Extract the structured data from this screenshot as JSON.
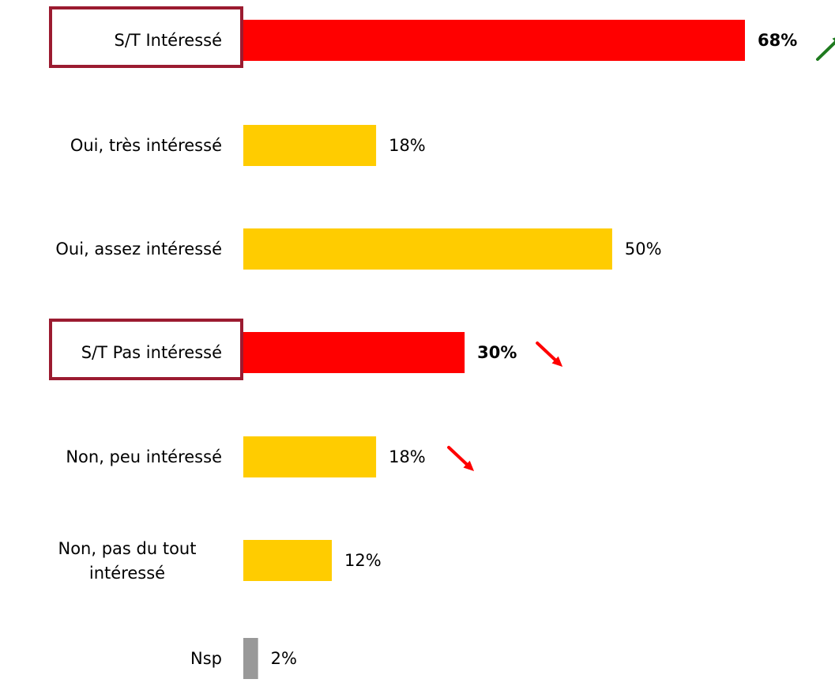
{
  "chart_data": {
    "type": "bar",
    "orientation": "horizontal",
    "categories": [
      "S/T Intéressé",
      "Oui, très intéressé",
      "Oui, assez intéressé",
      "S/T Pas intéressé",
      "Non, peu intéressé",
      "Non, pas du tout intéressé",
      "Nsp"
    ],
    "values": [
      68,
      18,
      50,
      30,
      18,
      12,
      2
    ],
    "value_labels": [
      "68%",
      "18%",
      "50%",
      "30%",
      "18%",
      "12%",
      "2%"
    ],
    "bold_value_labels": [
      true,
      false,
      false,
      true,
      false,
      false,
      false
    ],
    "boxed_categories": [
      true,
      false,
      false,
      true,
      false,
      false,
      false
    ],
    "bar_colors": [
      "#ff0000",
      "#ffcc00",
      "#ffcc00",
      "#ff0000",
      "#ffcc00",
      "#ffcc00",
      "#999999"
    ],
    "trends": [
      "up",
      "none",
      "none",
      "down",
      "down",
      "none",
      "none"
    ],
    "trend_colors": {
      "up": "#1e7a1e",
      "down": "#ff0000"
    },
    "box_border_color": "#9b1b30",
    "xlim": [
      0,
      68
    ],
    "title": "",
    "xlabel": "",
    "ylabel": "",
    "grid": false,
    "legend": "none"
  }
}
